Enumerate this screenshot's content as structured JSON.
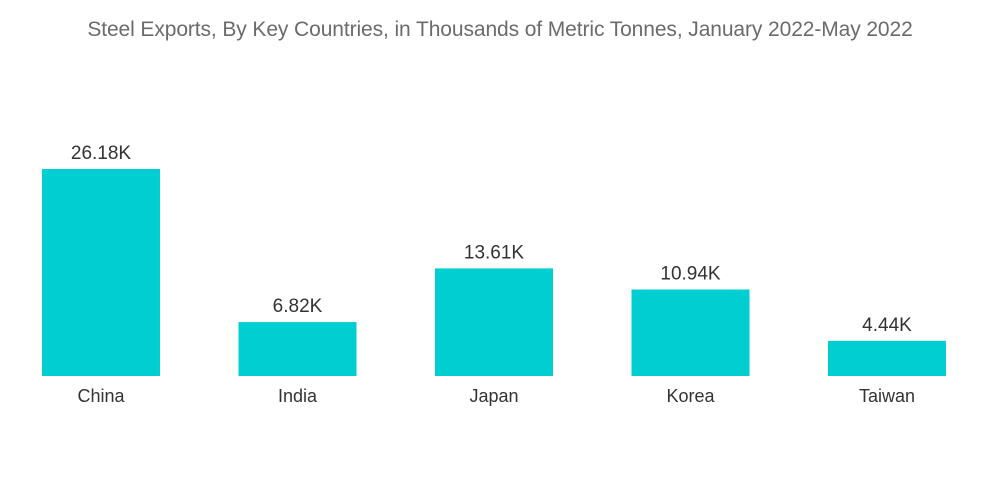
{
  "chart_data": {
    "type": "bar",
    "title": "Steel Exports, By Key Countries, in Thousands of Metric Tonnes, January 2022-May 2022",
    "xlabel": "",
    "ylabel": "",
    "categories": [
      "China",
      "India",
      "Japan",
      "Korea",
      "Taiwan"
    ],
    "values": [
      26.18,
      6.82,
      13.61,
      10.94,
      4.44
    ],
    "value_labels": [
      "26.18K",
      "6.82K",
      "13.61K",
      "10.94K",
      "4.44K"
    ],
    "ylim": [
      0,
      26.18
    ],
    "grid": false,
    "legend": "none",
    "bar_color": "#00ced1"
  }
}
